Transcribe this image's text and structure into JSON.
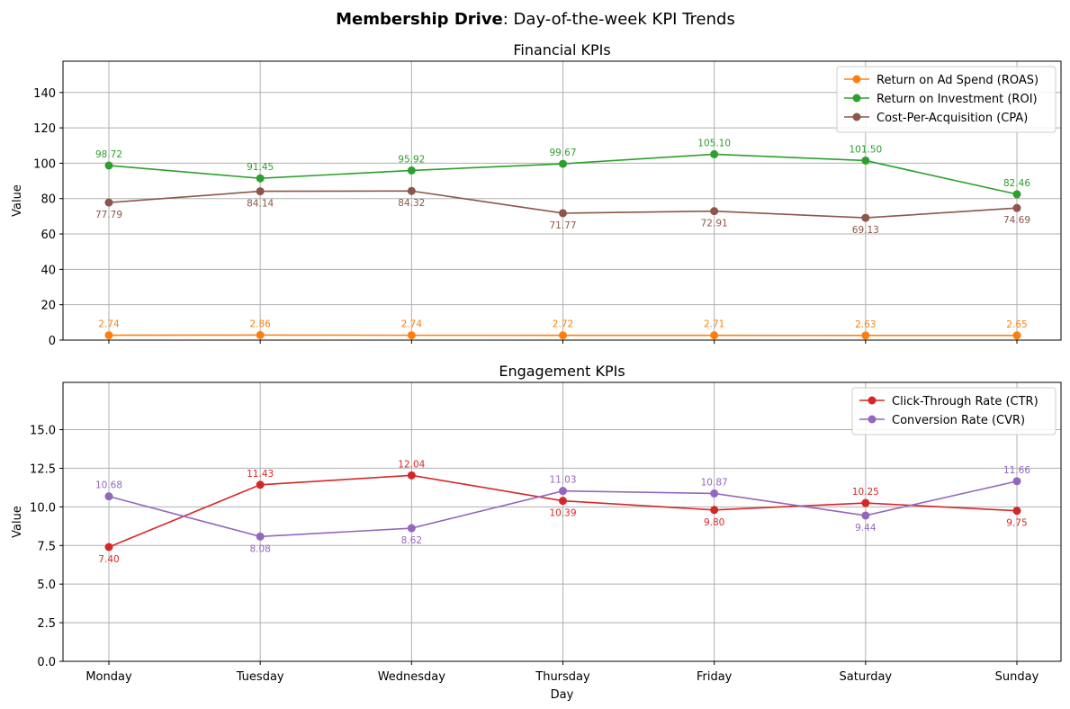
{
  "figure": {
    "title_bold": "Membership Drive",
    "title_rest": ": Day-of-the-week KPI Trends"
  },
  "chart_data": [
    {
      "type": "line",
      "title": "Financial KPIs",
      "xlabel": "",
      "ylabel": "Value",
      "categories": [
        "Monday",
        "Tuesday",
        "Wednesday",
        "Thursday",
        "Friday",
        "Saturday",
        "Sunday"
      ],
      "ylim": [
        0,
        157.7
      ],
      "yticks": [
        0,
        20,
        40,
        60,
        80,
        100,
        120,
        140
      ],
      "ytick_labels": [
        "0",
        "20",
        "40",
        "60",
        "80",
        "100",
        "120",
        "140"
      ],
      "grid": true,
      "legend": "top-right",
      "series": [
        {
          "name": "Return on Ad Spend (ROAS)",
          "color": "#ff7f0e",
          "label_pos": "above",
          "values": [
            2.74,
            2.86,
            2.74,
            2.72,
            2.71,
            2.63,
            2.65
          ],
          "labels": [
            "2.74",
            "2.86",
            "2.74",
            "2.72",
            "2.71",
            "2.63",
            "2.65"
          ]
        },
        {
          "name": "Return on Investment (ROI)",
          "color": "#2ca02c",
          "label_pos": "above",
          "values": [
            98.72,
            91.45,
            95.92,
            99.67,
            105.1,
            101.5,
            82.46
          ],
          "labels": [
            "98.72",
            "91.45",
            "95.92",
            "99.67",
            "105.10",
            "101.50",
            "82.46"
          ]
        },
        {
          "name": "Cost-Per-Acquisition (CPA)",
          "color": "#8c564b",
          "label_pos": "below",
          "values": [
            77.79,
            84.14,
            84.32,
            71.77,
            72.91,
            69.13,
            74.69
          ],
          "labels": [
            "77.79",
            "84.14",
            "84.32",
            "71.77",
            "72.91",
            "69.13",
            "74.69"
          ]
        }
      ]
    },
    {
      "type": "line",
      "title": "Engagement KPIs",
      "xlabel": "Day",
      "ylabel": "Value",
      "categories": [
        "Monday",
        "Tuesday",
        "Wednesday",
        "Thursday",
        "Friday",
        "Saturday",
        "Sunday"
      ],
      "ylim": [
        0,
        18.06
      ],
      "yticks": [
        0,
        2.5,
        5,
        7.5,
        10,
        12.5,
        15
      ],
      "ytick_labels": [
        "0.0",
        "2.5",
        "5.0",
        "7.5",
        "10.0",
        "12.5",
        "15.0"
      ],
      "grid": true,
      "legend": "top-right",
      "series": [
        {
          "name": "Click-Through Rate (CTR)",
          "color": "#d62728",
          "label_pos": "alternate",
          "values": [
            7.4,
            11.43,
            12.04,
            10.39,
            9.8,
            10.25,
            9.75
          ],
          "labels": [
            "7.40",
            "11.43",
            "12.04",
            "10.39",
            "9.80",
            "10.25",
            "9.75"
          ]
        },
        {
          "name": "Conversion Rate (CVR)",
          "color": "#9467bd",
          "label_pos": "alternate",
          "values": [
            10.68,
            8.08,
            8.62,
            11.03,
            10.87,
            9.44,
            11.66
          ],
          "labels": [
            "10.68",
            "8.08",
            "8.62",
            "11.03",
            "10.87",
            "9.44",
            "11.66"
          ]
        }
      ]
    }
  ]
}
